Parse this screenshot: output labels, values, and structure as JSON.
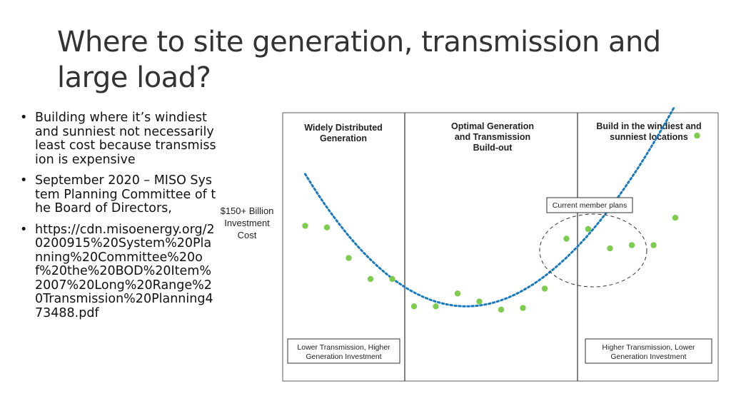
{
  "slide": {
    "title": "Where to site generation, transmission and large load?",
    "bullets": [
      "Building where it’s windiest and sunniest not necessarily least cost because transmission is expensive",
      "September 2020 – MISO System Planning Committee of the Board of Directors,",
      "https://cdn.misoenergy.org/20200915%20System%20Planning%20Committee%20of%20the%20BOD%20Item%2007%20Long%20Range%20Transmission%20Planning473488.pdf"
    ]
  },
  "chart_data": {
    "type": "scatter",
    "y_annotation": [
      "$150+ Billion",
      "Investment",
      "Cost"
    ],
    "panels": [
      {
        "title": [
          "Widely Distributed",
          "Generation"
        ],
        "footer": [
          "Lower Transmission, Higher",
          "Generation Investment"
        ]
      },
      {
        "title": [
          "Optimal Generation",
          "and Transmission",
          "Build-out"
        ],
        "footer": null
      },
      {
        "title": [
          "Build in the windiest and",
          "sunniest locations"
        ],
        "footer": [
          "Higher Transmission, Lower",
          "Generation Investment"
        ]
      }
    ],
    "callout": "Current member plans",
    "points": [
      {
        "x": 0.05,
        "y": 0.72
      },
      {
        "x": 0.1,
        "y": 0.71
      },
      {
        "x": 0.15,
        "y": 0.52
      },
      {
        "x": 0.2,
        "y": 0.39
      },
      {
        "x": 0.25,
        "y": 0.39
      },
      {
        "x": 0.3,
        "y": 0.22
      },
      {
        "x": 0.35,
        "y": 0.22
      },
      {
        "x": 0.4,
        "y": 0.3
      },
      {
        "x": 0.45,
        "y": 0.25
      },
      {
        "x": 0.5,
        "y": 0.2
      },
      {
        "x": 0.55,
        "y": 0.21
      },
      {
        "x": 0.6,
        "y": 0.33
      },
      {
        "x": 0.65,
        "y": 0.64
      },
      {
        "x": 0.7,
        "y": 0.7
      },
      {
        "x": 0.75,
        "y": 0.58
      },
      {
        "x": 0.8,
        "y": 0.6
      },
      {
        "x": 0.85,
        "y": 0.6
      },
      {
        "x": 0.9,
        "y": 0.77
      },
      {
        "x": 0.95,
        "y": 1.28
      }
    ],
    "trend_color": "#1a7ac0",
    "point_color": "#7dcc4f"
  }
}
